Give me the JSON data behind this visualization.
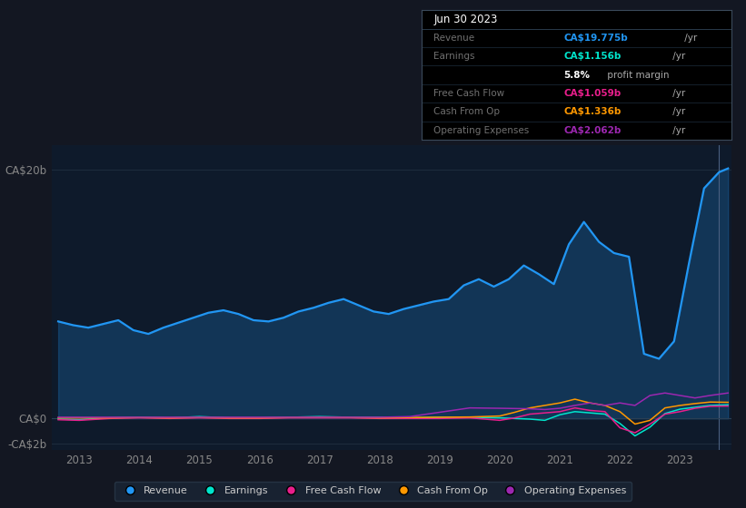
{
  "bg_color": "#131722",
  "plot_bg_color": "#0e1a2b",
  "grid_color": "#1e2d3d",
  "axis_label_color": "#888888",
  "revenue_color": "#2196f3",
  "earnings_color": "#00e5cc",
  "fcf_color": "#e91e8c",
  "cashfromop_color": "#ff9800",
  "opex_color": "#9c27b0",
  "ylim": [
    -2.5,
    22.0
  ],
  "xlim": [
    2012.55,
    2023.85
  ],
  "x_ticks": [
    2013,
    2014,
    2015,
    2016,
    2017,
    2018,
    2019,
    2020,
    2021,
    2022,
    2023
  ],
  "revenue_x": [
    2012.65,
    2012.9,
    2013.15,
    2013.4,
    2013.65,
    2013.9,
    2014.15,
    2014.4,
    2014.65,
    2014.9,
    2015.15,
    2015.4,
    2015.65,
    2015.9,
    2016.15,
    2016.4,
    2016.65,
    2016.9,
    2017.15,
    2017.4,
    2017.65,
    2017.9,
    2018.15,
    2018.4,
    2018.65,
    2018.9,
    2019.15,
    2019.4,
    2019.65,
    2019.9,
    2020.15,
    2020.4,
    2020.65,
    2020.9,
    2021.15,
    2021.4,
    2021.65,
    2021.9,
    2022.15,
    2022.4,
    2022.65,
    2022.9,
    2023.15,
    2023.4,
    2023.65,
    2023.8
  ],
  "revenue_y": [
    7.8,
    7.5,
    7.3,
    7.6,
    7.9,
    7.1,
    6.8,
    7.3,
    7.7,
    8.1,
    8.5,
    8.7,
    8.4,
    7.9,
    7.8,
    8.1,
    8.6,
    8.9,
    9.3,
    9.6,
    9.1,
    8.6,
    8.4,
    8.8,
    9.1,
    9.4,
    9.6,
    10.7,
    11.2,
    10.6,
    11.2,
    12.3,
    11.6,
    10.8,
    14.0,
    15.8,
    14.2,
    13.3,
    13.0,
    5.2,
    4.8,
    6.2,
    12.5,
    18.5,
    19.8,
    20.1
  ],
  "earnings_x": [
    2012.65,
    2013.0,
    2013.5,
    2014.0,
    2014.5,
    2015.0,
    2015.5,
    2016.0,
    2016.5,
    2017.0,
    2017.5,
    2018.0,
    2018.5,
    2019.0,
    2019.5,
    2020.0,
    2020.25,
    2020.5,
    2020.75,
    2021.0,
    2021.25,
    2021.5,
    2021.75,
    2022.0,
    2022.25,
    2022.5,
    2022.75,
    2023.0,
    2023.25,
    2023.5,
    2023.8
  ],
  "earnings_y": [
    -0.05,
    -0.1,
    0.05,
    0.1,
    0.05,
    0.15,
    0.05,
    0.05,
    0.1,
    0.15,
    0.1,
    0.1,
    0.05,
    0.1,
    0.1,
    0.05,
    0.0,
    -0.05,
    -0.15,
    0.3,
    0.55,
    0.45,
    0.35,
    -0.4,
    -1.4,
    -0.7,
    0.4,
    0.75,
    0.9,
    1.05,
    1.1
  ],
  "fcf_x": [
    2012.65,
    2013.0,
    2013.5,
    2014.0,
    2014.5,
    2015.0,
    2015.5,
    2016.0,
    2016.5,
    2017.0,
    2017.5,
    2018.0,
    2018.5,
    2019.0,
    2019.5,
    2020.0,
    2020.25,
    2020.5,
    2020.75,
    2021.0,
    2021.25,
    2021.5,
    2021.75,
    2022.0,
    2022.25,
    2022.5,
    2022.75,
    2023.0,
    2023.25,
    2023.5,
    2023.8
  ],
  "fcf_y": [
    -0.1,
    -0.15,
    0.0,
    0.05,
    0.0,
    0.05,
    0.0,
    0.0,
    0.05,
    0.05,
    0.05,
    0.0,
    0.0,
    0.0,
    0.05,
    -0.15,
    0.05,
    0.35,
    0.45,
    0.55,
    0.85,
    0.65,
    0.55,
    -0.75,
    -1.15,
    -0.45,
    0.35,
    0.55,
    0.82,
    0.98,
    1.0
  ],
  "cashop_x": [
    2012.65,
    2013.0,
    2013.5,
    2014.0,
    2014.5,
    2015.0,
    2015.5,
    2016.0,
    2016.5,
    2017.0,
    2017.5,
    2018.0,
    2018.5,
    2019.0,
    2019.5,
    2020.0,
    2020.25,
    2020.5,
    2020.75,
    2021.0,
    2021.25,
    2021.5,
    2021.75,
    2022.0,
    2022.25,
    2022.5,
    2022.75,
    2023.0,
    2023.25,
    2023.5,
    2023.8
  ],
  "cashop_y": [
    0.05,
    0.05,
    0.05,
    0.08,
    0.05,
    0.08,
    0.05,
    0.05,
    0.08,
    0.1,
    0.08,
    0.05,
    0.08,
    0.1,
    0.12,
    0.2,
    0.5,
    0.85,
    1.05,
    1.25,
    1.55,
    1.25,
    1.05,
    0.55,
    -0.45,
    -0.15,
    0.85,
    1.05,
    1.2,
    1.32,
    1.3
  ],
  "opex_x": [
    2012.65,
    2013.0,
    2013.5,
    2014.0,
    2014.5,
    2015.0,
    2015.5,
    2016.0,
    2016.5,
    2017.0,
    2017.5,
    2018.0,
    2018.5,
    2019.0,
    2019.5,
    2020.0,
    2020.25,
    2020.5,
    2020.75,
    2021.0,
    2021.25,
    2021.5,
    2021.75,
    2022.0,
    2022.25,
    2022.5,
    2022.75,
    2023.0,
    2023.25,
    2023.5,
    2023.8
  ],
  "opex_y": [
    0.1,
    0.1,
    0.1,
    0.1,
    0.1,
    0.1,
    0.1,
    0.1,
    0.1,
    0.1,
    0.1,
    0.1,
    0.15,
    0.5,
    0.85,
    0.82,
    0.8,
    0.78,
    0.72,
    0.82,
    1.05,
    1.25,
    1.05,
    1.25,
    1.05,
    1.85,
    2.05,
    1.85,
    1.65,
    1.85,
    2.05
  ],
  "tooltip": {
    "date": "Jun 30 2023",
    "rows": [
      {
        "label": "Revenue",
        "value": "CA$19.775b /yr",
        "value_color": "#2196f3"
      },
      {
        "label": "Earnings",
        "value": "CA$1.156b /yr",
        "value_color": "#00e5cc"
      },
      {
        "label": "",
        "value": "5.8% profit margin",
        "value_color": "#ffffff",
        "bold_prefix": "5.8%"
      },
      {
        "label": "Free Cash Flow",
        "value": "CA$1.059b /yr",
        "value_color": "#e91e8c"
      },
      {
        "label": "Cash From Op",
        "value": "CA$1.336b /yr",
        "value_color": "#ff9800"
      },
      {
        "label": "Operating Expenses",
        "value": "CA$2.062b /yr",
        "value_color": "#9c27b0"
      }
    ]
  },
  "legend": [
    {
      "label": "Revenue",
      "color": "#2196f3"
    },
    {
      "label": "Earnings",
      "color": "#00e5cc"
    },
    {
      "label": "Free Cash Flow",
      "color": "#e91e8c"
    },
    {
      "label": "Cash From Op",
      "color": "#ff9800"
    },
    {
      "label": "Operating Expenses",
      "color": "#9c27b0"
    }
  ],
  "cursor_x": 2023.65,
  "cursor_color": "#4a6080"
}
